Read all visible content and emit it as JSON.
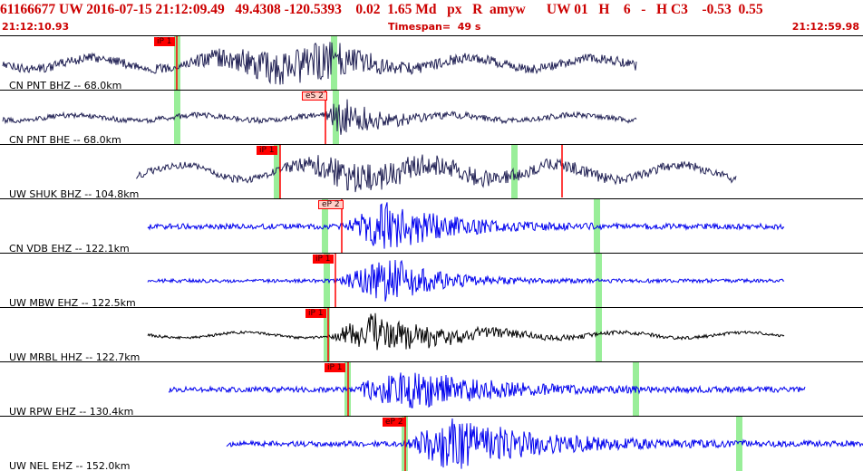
{
  "header": {
    "summary": "61166677 UW 2016-07-15 21:12:09.49   49.4308 -120.5393    0.02  1.65 Md   px   R  amyw      UW 01   H    6   -   H C3    -0.53  0.55",
    "start_time": "21:12:10.93",
    "timespan": "Timespan=  49 s",
    "end_time": "21:12:59.98"
  },
  "colors": {
    "header_text": "#cc0000",
    "pick": "#ff0000",
    "coda_marker": "#99ee99"
  },
  "traces": [
    {
      "label": "CN PNT BHZ -- 68.0km",
      "color": "#222255",
      "pick": "iP 1",
      "pick_style": "filled"
    },
    {
      "label": "CN PNT BHE -- 68.0km",
      "color": "#222255",
      "pick": "eS 2",
      "pick_style": "outline"
    },
    {
      "label": "UW SHUK BHZ -- 104.8km",
      "color": "#222255",
      "pick": "iP 1",
      "pick_style": "filled"
    },
    {
      "label": "CN VDB EHZ -- 122.1km",
      "color": "#0000ee",
      "pick": "eP 2",
      "pick_style": "outline"
    },
    {
      "label": "UW MBW EHZ -- 122.5km",
      "color": "#0000ee",
      "pick": "iP 1",
      "pick_style": "filled"
    },
    {
      "label": "UW MRBL HHZ -- 122.7km",
      "color": "#000000",
      "pick": "iP 1",
      "pick_style": "filled"
    },
    {
      "label": "UW RPW EHZ -- 130.4km",
      "color": "#0000ee",
      "pick": "iP 1",
      "pick_style": "filled"
    },
    {
      "label": "UW NEL EHZ -- 152.0km",
      "color": "#0000ee",
      "pick": "eP 2",
      "pick_style": "filled"
    }
  ]
}
